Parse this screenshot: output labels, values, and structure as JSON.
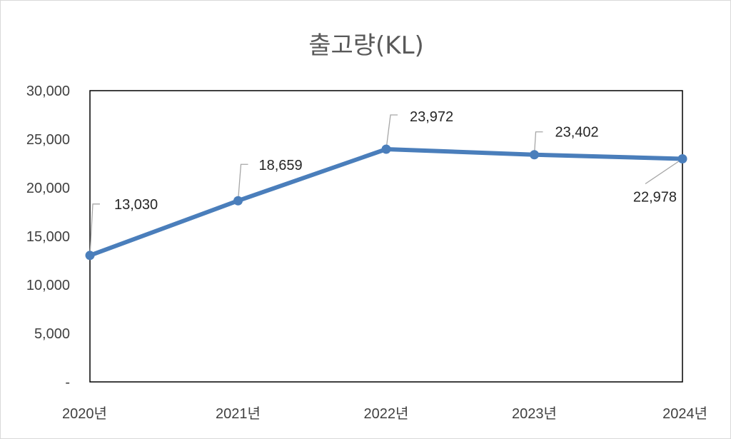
{
  "chart_data": {
    "type": "line",
    "title": "출고량(KL)",
    "categories": [
      "2020년",
      "2021년",
      "2022년",
      "2023년",
      "2024년"
    ],
    "series": [
      {
        "values": [
          13030,
          18659,
          23972,
          23402,
          22978
        ]
      }
    ],
    "data_labels": [
      "13,030",
      "18,659",
      "23,972",
      "23,402",
      "22,978"
    ],
    "ylim": [
      0,
      30000
    ],
    "yticks": [
      0,
      5000,
      10000,
      15000,
      20000,
      25000,
      30000
    ],
    "ytick_labels": [
      "-",
      "5,000",
      "10,000",
      "15,000",
      "20,000",
      "25,000",
      "30,000"
    ],
    "grid": false,
    "line_color": "#4a7ebb"
  }
}
